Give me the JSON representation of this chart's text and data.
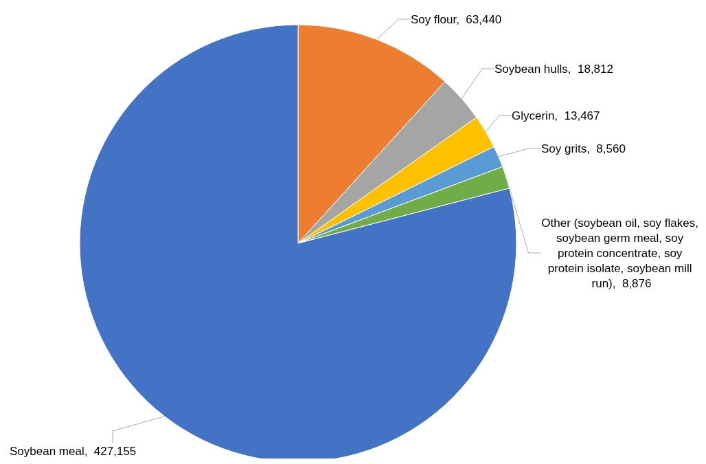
{
  "chart_data": {
    "type": "pie",
    "categories": [
      "Soy flour",
      "Soybean hulls",
      "Glycerin",
      "Soy grits",
      "Other (soybean oil, soy flakes, soybean germ meal, soy protein concentrate, soy protein isolate, soybean mill run)",
      "Soybean meal"
    ],
    "values": [
      63440,
      18812,
      13467,
      8560,
      8876,
      427155
    ],
    "value_labels": [
      "63,440",
      "18,812",
      "13,467",
      "8,560",
      "8,876",
      "427,155"
    ],
    "colors": [
      "#ed7d31",
      "#a5a5a5",
      "#ffc000",
      "#5b9bd5",
      "#70ad47",
      "#4472c4"
    ],
    "legend": false
  }
}
